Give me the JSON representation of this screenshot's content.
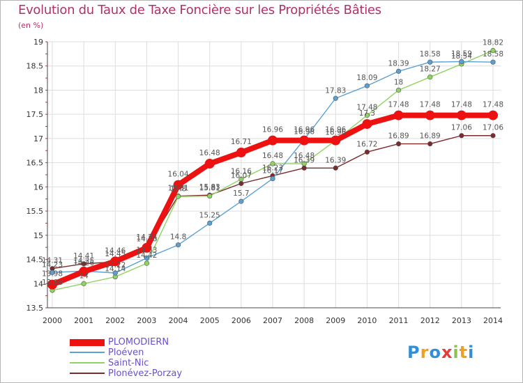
{
  "header": {
    "title": "Evolution du Taux de Taxe Foncière sur les Propriétés Bâties",
    "unit": "(en %)"
  },
  "logo": {
    "letters": [
      "P",
      "r",
      "o",
      "x",
      "i",
      "t",
      "i"
    ],
    "colors": [
      "#2f8fd8",
      "#f0a020",
      "#2f8fd8",
      "#e23c3c",
      "#8bc34a",
      "#f0a020",
      "#2f8fd8"
    ]
  },
  "chart_data": {
    "type": "line",
    "title": "Evolution du Taux de Taxe Foncière sur les Propriétés Bâties",
    "ylabel": "(en %)",
    "xlabel": "",
    "x": [
      "2000",
      "2001",
      "2002",
      "2003",
      "2004",
      "2005",
      "2006",
      "2007",
      "2008",
      "2009",
      "2010",
      "2011",
      "2012",
      "2013",
      "2014"
    ],
    "ylim": [
      13.5,
      19
    ],
    "yticks": [
      "13.5",
      "14",
      "14.5",
      "15",
      "15.5",
      "16",
      "16.5",
      "17",
      "17.5",
      "18",
      "18.5",
      "19"
    ],
    "grid": true,
    "legend_position": "bottom-left",
    "series": [
      {
        "name": "Plonévez-Porzay",
        "color": "#7a2b2b",
        "thick": false,
        "values": [
          14.31,
          14.41,
          14.45,
          14.76,
          15.81,
          15.83,
          16.07,
          16.23,
          16.39,
          16.39,
          16.72,
          16.89,
          16.89,
          17.06,
          17.06
        ],
        "labels": [
          "14.31",
          "14.41",
          "14.45",
          "14.76",
          "15.81",
          "15.83",
          "16.07",
          "16.23",
          "16.39",
          "16.39",
          "16.72",
          "16.89",
          "16.89",
          "17.06",
          "17.06"
        ]
      },
      {
        "name": "Saint-Nic",
        "color": "#8fd460",
        "thick": false,
        "values": [
          13.86,
          14.0,
          14.14,
          14.42,
          15.8,
          15.81,
          16.16,
          16.48,
          16.48,
          16.96,
          17.48,
          18.0,
          18.27,
          18.54,
          18.82
        ],
        "labels": [
          "13.86",
          "14",
          "14.14",
          "14.42",
          "15.8",
          "15.81",
          "16.16",
          "16.48",
          "16.48",
          "16.96",
          "17.48",
          "18",
          "18.27",
          "18.54",
          "18.82"
        ]
      },
      {
        "name": "Ploéven",
        "color": "#5aa0d2",
        "thick": false,
        "values": [
          14.23,
          14.26,
          14.22,
          14.53,
          14.8,
          15.25,
          15.7,
          16.17,
          16.98,
          17.83,
          18.09,
          18.39,
          18.58,
          18.59,
          18.58
        ],
        "labels": [
          "14.23",
          "14.26",
          "14.22",
          "14.53",
          "14.8",
          "15.25",
          "15.7",
          "16.17",
          "16.98",
          "17.83",
          "18.09",
          "18.39",
          "18.58",
          "18.59",
          "18.58"
        ]
      },
      {
        "name": "PLOMODIERN",
        "color": "#ee1111",
        "thick": true,
        "values": [
          13.98,
          14.25,
          14.46,
          14.74,
          16.04,
          16.48,
          16.71,
          16.96,
          16.96,
          16.96,
          17.3,
          17.48,
          17.48,
          17.48,
          17.48
        ],
        "labels": [
          "13.98",
          "14.25",
          "14.46",
          "14.74",
          "16.04",
          "16.48",
          "16.71",
          "16.96",
          "16.96",
          "16.96",
          "17.3",
          "17.48",
          "17.48",
          "17.48",
          "17.48"
        ]
      }
    ],
    "legend": [
      "PLOMODIERN",
      "Ploéven",
      "Saint-Nic",
      "Plonévez-Porzay"
    ]
  }
}
